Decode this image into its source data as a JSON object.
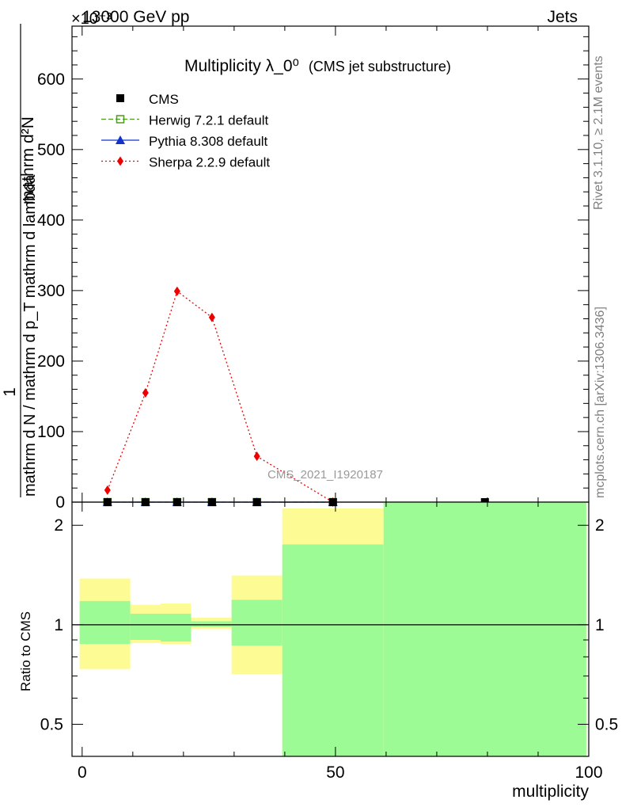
{
  "header": {
    "exponent_label": "×10⁻³",
    "energy_label": "13000 GeV pp",
    "category_label": "Jets"
  },
  "side_labels": {
    "rivet": "Rivet 3.1.10, ≥ 2.1M events",
    "mcplots": "mcplots.cern.ch [arXiv:1306.3436]"
  },
  "chart_data": [
    {
      "type": "line",
      "title": "Multiplicity λ_0⁰",
      "subtitle": "(CMS jet substructure)",
      "watermark": "CMS_2021_I1920187",
      "ylabel_numerator": "1",
      "ylabel_denominator": "mathrm d N / mathrm d p_T mathrm d lambda",
      "ylabel_top": "mathrm d²N",
      "xlim": [
        -2,
        100
      ],
      "ylim": [
        0,
        675
      ],
      "yticks": [
        0,
        100,
        200,
        300,
        400,
        500,
        600
      ],
      "ytick_labels": [
        "0",
        "100",
        "200",
        "300",
        "400",
        "500",
        "600"
      ],
      "legend": [
        {
          "name": "CMS",
          "color": "#000000",
          "marker": "square"
        },
        {
          "name": "Herwig 7.2.1 default",
          "color": "#4d9a1e",
          "marker": "open-square"
        },
        {
          "name": "Pythia 8.308 default",
          "color": "#1133cc",
          "marker": "triangle"
        },
        {
          "name": "Sherpa 2.2.9 default",
          "color": "#ee0000",
          "marker": "diamond"
        }
      ],
      "series": [
        {
          "name": "CMS",
          "x": [
            5,
            12.5,
            18.75,
            25.625,
            34.5,
            49.5,
            79.5
          ],
          "values": [
            0,
            0,
            0,
            0,
            0,
            0,
            0
          ]
        },
        {
          "name": "Herwig 7.2.1 default",
          "x": [
            5,
            12.5,
            18.75,
            25.625,
            34.5,
            49.5
          ],
          "values": [
            0,
            0,
            0,
            0,
            0,
            0
          ]
        },
        {
          "name": "Pythia 8.308 default",
          "x": [
            5,
            12.5,
            18.75,
            25.625,
            34.5,
            49.5
          ],
          "values": [
            0,
            0,
            0,
            0,
            0,
            0
          ]
        },
        {
          "name": "Sherpa 2.2.9 default",
          "x": [
            5,
            12.5,
            18.75,
            25.625,
            34.5,
            49.5
          ],
          "values": [
            17,
            155,
            299,
            262,
            65,
            0
          ]
        }
      ]
    },
    {
      "type": "area",
      "ylabel": "Ratio to CMS",
      "xlabel": "multiplicity",
      "xlim": [
        -2,
        100
      ],
      "ylim": [
        0.4,
        2.35
      ],
      "yscale": "log",
      "xticks": [
        0,
        50,
        100
      ],
      "xtick_labels": [
        "0",
        "50",
        "100"
      ],
      "yticks": [
        0.5,
        1,
        2
      ],
      "ytick_labels": [
        "0.5",
        "1",
        "2"
      ],
      "reference_line": 1,
      "bands": [
        {
          "x0": -0.5,
          "x1": 9.5,
          "stat_lo": 0.875,
          "stat_hi": 1.18,
          "tot_lo": 0.735,
          "tot_hi": 1.38
        },
        {
          "x0": 9.5,
          "x1": 15.5,
          "stat_lo": 0.9,
          "stat_hi": 1.08,
          "tot_lo": 0.88,
          "tot_hi": 1.15
        },
        {
          "x0": 15.5,
          "x1": 21.5,
          "stat_lo": 0.89,
          "stat_hi": 1.08,
          "tot_lo": 0.875,
          "tot_hi": 1.16
        },
        {
          "x0": 21.5,
          "x1": 29.5,
          "stat_lo": 0.985,
          "stat_hi": 1.025,
          "tot_lo": 0.97,
          "tot_hi": 1.05
        },
        {
          "x0": 29.5,
          "x1": 39.5,
          "stat_lo": 0.865,
          "stat_hi": 1.19,
          "tot_lo": 0.71,
          "tot_hi": 1.41
        },
        {
          "x0": 39.5,
          "x1": 59.5,
          "stat_lo": 0.4,
          "stat_hi": 1.75,
          "tot_lo": 0.4,
          "tot_hi": 2.25
        },
        {
          "x0": 59.5,
          "x1": 99.5,
          "stat_lo": 0.4,
          "stat_hi": 2.35,
          "tot_lo": 0.4,
          "tot_hi": 2.35
        }
      ],
      "band_colors": {
        "stat": "#9cfb94",
        "total": "#fcfb94"
      }
    }
  ]
}
